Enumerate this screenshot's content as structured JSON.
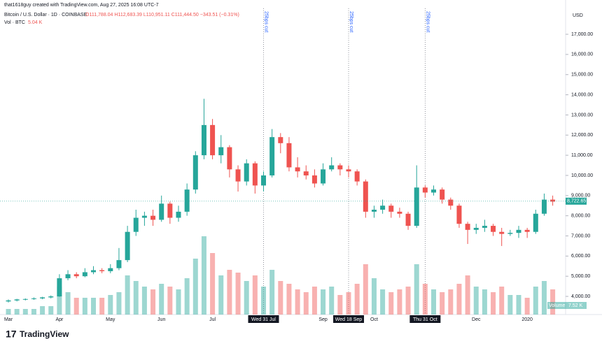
{
  "chart_data": {
    "type": "candlestick",
    "credit": "that1618guy created with TradingView.com, Aug 27, 2025 16:08 UTC-7",
    "symbol": "Bitcoin / U.S. Dollar · 1D · COINBASE",
    "ohlc_legend": "O111,788.04 H112,683.39 L110,951.11 C111,444.50 −343.51 (−0.31%)",
    "volume_legend": "Vol · BTC",
    "volume_legend_value": "5.04 K",
    "currency": "USD",
    "volume_tag": "Volume",
    "volume_tag_value": "7.52 K",
    "logo": "TradingView",
    "up_color": "#26a69a",
    "down_color": "#ef5350",
    "categories": [
      "Mar",
      null,
      null,
      null,
      null,
      null,
      "Apr",
      null,
      null,
      null,
      null,
      null,
      "May",
      null,
      null,
      null,
      null,
      null,
      "Jun",
      null,
      null,
      null,
      null,
      null,
      "Jul",
      null,
      null,
      null,
      null,
      null,
      "Wed 31 Jul",
      null,
      null,
      null,
      null,
      null,
      null,
      "Sep",
      null,
      null,
      "Wed 18 Sep",
      null,
      null,
      "Oct",
      null,
      null,
      null,
      null,
      null,
      "Thu 31 Oct",
      null,
      null,
      null,
      null,
      null,
      "Dec",
      null,
      null,
      null,
      null,
      null,
      "2020",
      null,
      null,
      null
    ],
    "events": [
      {
        "at": "Wed 31 Jul",
        "label": "25bps cut"
      },
      {
        "at": "Wed 18 Sep",
        "label": "25bps cut"
      },
      {
        "at": "Thu 31 Oct",
        "label": "25bps cut"
      }
    ],
    "open": [
      3750,
      3800,
      3850,
      3870,
      3900,
      3950,
      4000,
      4900,
      5100,
      5000,
      5200,
      5300,
      5250,
      5400,
      5800,
      7200,
      7900,
      8000,
      7800,
      8600,
      7900,
      8200,
      9300,
      11000,
      12500,
      11000,
      11400,
      10300,
      9700,
      10600,
      9500,
      10000,
      11900,
      11600,
      10400,
      10200,
      10000,
      9600,
      10300,
      10500,
      10300,
      10200,
      9700,
      8200,
      8300,
      8500,
      8200,
      8100,
      7500,
      9400,
      9150,
      9300,
      8800,
      8500,
      7600,
      7300,
      7400,
      7500,
      7200,
      7100,
      7150,
      7300,
      7200,
      8100,
      8800
    ],
    "high": [
      3850,
      3880,
      3900,
      3950,
      3980,
      4050,
      5100,
      5300,
      5200,
      5400,
      5500,
      5400,
      5600,
      6400,
      7500,
      8300,
      8200,
      8300,
      9000,
      8700,
      8500,
      9600,
      11200,
      13800,
      12800,
      12000,
      11500,
      10500,
      10800,
      10700,
      10200,
      12300,
      12100,
      11900,
      10900,
      10500,
      10300,
      10600,
      10900,
      10600,
      10500,
      10300,
      9800,
      8500,
      8800,
      8600,
      8400,
      8200,
      10500,
      9500,
      9500,
      9400,
      8900,
      8600,
      7700,
      7600,
      7800,
      7600,
      7400,
      7300,
      7500,
      7400,
      8300,
      9100,
      9000
    ],
    "low": [
      3700,
      3750,
      3800,
      3830,
      3860,
      3900,
      3980,
      4800,
      4900,
      4950,
      5100,
      5150,
      5150,
      5300,
      5700,
      7000,
      7500,
      7500,
      7700,
      7600,
      7700,
      8000,
      9100,
      10800,
      10800,
      10600,
      9900,
      9200,
      9500,
      9100,
      9200,
      9900,
      11100,
      10200,
      9900,
      9800,
      9400,
      9500,
      10200,
      10000,
      9900,
      9500,
      7900,
      7900,
      8100,
      7900,
      7900,
      7300,
      7400,
      8900,
      9000,
      8600,
      8300,
      7400,
      6600,
      7100,
      7200,
      7000,
      6500,
      7000,
      6900,
      6900,
      7100,
      8000,
      8500
    ],
    "close": [
      3800,
      3850,
      3870,
      3900,
      3950,
      4000,
      4900,
      5100,
      5000,
      5200,
      5300,
      5250,
      5400,
      5800,
      7200,
      7900,
      8000,
      7800,
      8600,
      7900,
      8200,
      9300,
      11000,
      12500,
      11000,
      11400,
      10300,
      9700,
      10600,
      9500,
      10000,
      11900,
      11600,
      10400,
      10200,
      10000,
      9600,
      10300,
      10500,
      10300,
      10200,
      9700,
      8200,
      8300,
      8500,
      8200,
      8100,
      7500,
      9400,
      9150,
      9300,
      8800,
      8500,
      7600,
      7300,
      7400,
      7500,
      7200,
      7100,
      7150,
      7300,
      7200,
      8100,
      8800,
      8700
    ],
    "volume": [
      2,
      2,
      2,
      2,
      3,
      3,
      10,
      8,
      6,
      6,
      6,
      6,
      7,
      8,
      14,
      12,
      10,
      9,
      11,
      10,
      9,
      13,
      20,
      28,
      22,
      14,
      16,
      15,
      12,
      14,
      10,
      16,
      12,
      11,
      9,
      8,
      10,
      9,
      10,
      7,
      8,
      11,
      18,
      13,
      9,
      8,
      9,
      10,
      18,
      11,
      9,
      8,
      9,
      11,
      14,
      10,
      9,
      8,
      10,
      7,
      7,
      6,
      10,
      12,
      9
    ],
    "vlim": [
      0,
      30
    ],
    "last_price": {
      "value": 8722.65,
      "label": "8,722.65"
    },
    "ylim": [
      3100,
      18180
    ],
    "yticks": [
      {
        "value": 4000,
        "label": "4,000.00"
      },
      {
        "value": 5000,
        "label": "5,000.00"
      },
      {
        "value": 6000,
        "label": "6,000.00"
      },
      {
        "value": 7000,
        "label": "7,000.00"
      },
      {
        "value": 8000,
        "label": "8,000.00"
      },
      {
        "value": 9000,
        "label": "9,000.00"
      },
      {
        "value": 10000,
        "label": "10,000.00"
      },
      {
        "value": 11000,
        "label": "11,000.00"
      },
      {
        "value": 12000,
        "label": "12,000.00"
      },
      {
        "value": 13000,
        "label": "13,000.00"
      },
      {
        "value": 14000,
        "label": "14,000.00"
      },
      {
        "value": 15000,
        "label": "15,000.00"
      },
      {
        "value": 16000,
        "label": "16,000.00"
      },
      {
        "value": 17000,
        "label": "17,000.00"
      }
    ]
  }
}
